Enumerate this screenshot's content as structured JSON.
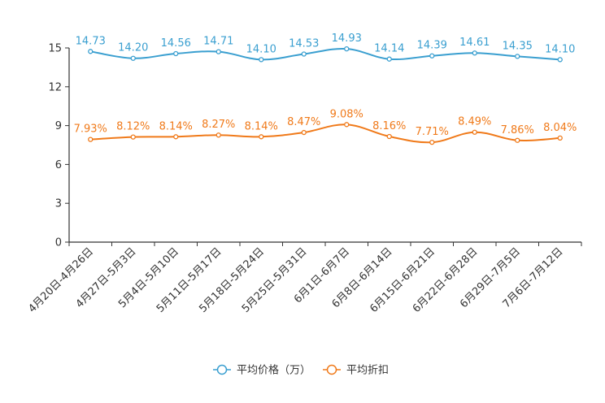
{
  "chart_data": {
    "type": "line",
    "categories": [
      "4月20日-4月26日",
      "4月27日-5月3日",
      "5月4日-5月10日",
      "5月11日-5月17日",
      "5月18日-5月24日",
      "5月25日-5月31日",
      "6月1日-6月7日",
      "6月8日-6月14日",
      "6月15日-6月21日",
      "6月22日-6月28日",
      "6月29日-7月5日",
      "7月6日-7月12日"
    ],
    "series": [
      {
        "name": "平均价格（万）",
        "color": "#3a9fd0",
        "values": [
          14.73,
          14.2,
          14.56,
          14.71,
          14.1,
          14.53,
          14.93,
          14.14,
          14.39,
          14.61,
          14.35,
          14.1
        ],
        "labels": [
          "14.73",
          "14.20",
          "14.56",
          "14.71",
          "14.10",
          "14.53",
          "14.93",
          "14.14",
          "14.39",
          "14.61",
          "14.35",
          "14.10"
        ]
      },
      {
        "name": "平均折扣",
        "color": "#f07a1a",
        "values": [
          7.93,
          8.12,
          8.14,
          8.27,
          8.14,
          8.47,
          9.08,
          8.16,
          7.71,
          8.49,
          7.86,
          8.04
        ],
        "labels": [
          "7.93%",
          "8.12%",
          "8.14%",
          "8.27%",
          "8.14%",
          "8.47%",
          "9.08%",
          "8.16%",
          "7.71%",
          "8.49%",
          "7.86%",
          "8.04%"
        ]
      }
    ],
    "ylim": [
      0,
      15
    ],
    "yticks": [
      "0",
      "3",
      "6",
      "9",
      "12",
      "15"
    ],
    "ytick_values": [
      0,
      3,
      6,
      9,
      12,
      15
    ],
    "legend_position": "bottom-center",
    "grid": false
  }
}
